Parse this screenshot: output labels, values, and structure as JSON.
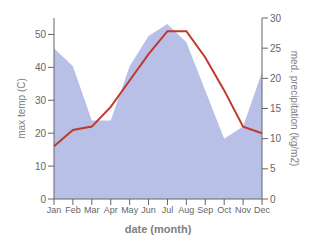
{
  "chart_data": {
    "type": "line",
    "categories": [
      "Jan",
      "Feb",
      "Mar",
      "Apr",
      "May",
      "Jun",
      "Jul",
      "Aug",
      "Sep",
      "Oct",
      "Nov",
      "Dec"
    ],
    "series": [
      {
        "type": "area",
        "axis": "y2",
        "color": "#b8c0e8",
        "values": [
          25,
          22,
          13,
          13,
          22,
          27,
          29,
          26,
          18,
          10,
          12,
          21
        ]
      },
      {
        "type": "line",
        "color": "#c0392b",
        "values": [
          16,
          21,
          22,
          28,
          36,
          44,
          51,
          51,
          43,
          33,
          22,
          20
        ]
      }
    ],
    "xlabel": "date (month)",
    "ylabel": "max temp (C)",
    "y2label": "med. precipitation (kg/m2)",
    "ylim": [
      0,
      55
    ],
    "yticks": [
      0,
      10,
      20,
      30,
      40,
      50
    ],
    "y2lim": [
      0,
      30
    ],
    "y2ticks": [
      0,
      5,
      10,
      15,
      20,
      25,
      30
    ]
  }
}
